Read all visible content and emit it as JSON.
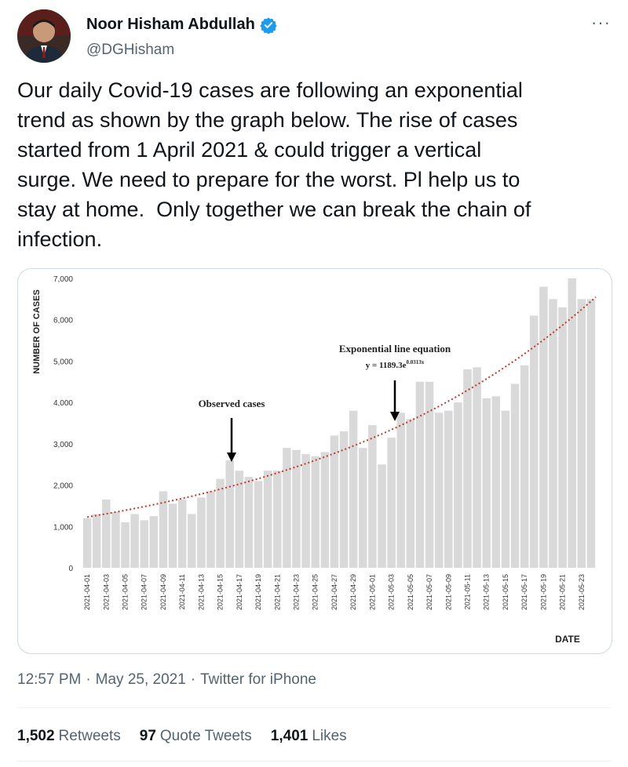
{
  "tweet": {
    "author_name": "Noor Hisham Abdullah",
    "handle": "@DGHisham",
    "more_icon": "more-horizontal-icon",
    "verified_icon": "verified-badge-icon",
    "text": "Our daily Covid-19 cases are following an exponential\ntrend as shown by the graph below. The rise of cases\nstarted from 1 April 2021 & could trigger a vertical\nsurge. We need to prepare for the worst. Pl help us to\nstay at home.  Only together we can break the chain of\ninfection.",
    "time": "12:57 PM",
    "date": "May 25, 2021",
    "source": "Twitter for iPhone",
    "separator": "·",
    "stats": {
      "retweets_count": "1,502",
      "retweets_label": "Retweets",
      "quotes_count": "97",
      "quotes_label": "Quote Tweets",
      "likes_count": "1,401",
      "likes_label": "Likes"
    },
    "colors": {
      "verified": "#1d9bf0",
      "bar": "#d9d9d9",
      "trend": "#c0392b"
    }
  },
  "chart_data": {
    "type": "bar",
    "ylabel": "NUMBER OF CASES",
    "xlabel": "DATE",
    "ylim": [
      0,
      7000
    ],
    "yticks": [
      "0",
      "1,000",
      "2,000",
      "3,000",
      "4,000",
      "5,000",
      "6,000",
      "7,000"
    ],
    "grid": false,
    "annotations": {
      "observed": "Observed cases",
      "equation_title": "Exponential line equation",
      "equation": "y = 1189.3e",
      "equation_exp": "0.0313x"
    },
    "trend": {
      "a": 1189.3,
      "b": 0.0313
    },
    "categories": [
      "2021-04-01",
      "2021-04-02",
      "2021-04-03",
      "2021-04-04",
      "2021-04-05",
      "2021-04-06",
      "2021-04-07",
      "2021-04-08",
      "2021-04-09",
      "2021-04-10",
      "2021-04-11",
      "2021-04-12",
      "2021-04-13",
      "2021-04-14",
      "2021-04-15",
      "2021-04-16",
      "2021-04-17",
      "2021-04-18",
      "2021-04-19",
      "2021-04-20",
      "2021-04-21",
      "2021-04-22",
      "2021-04-23",
      "2021-04-24",
      "2021-04-25",
      "2021-04-26",
      "2021-04-27",
      "2021-04-28",
      "2021-04-29",
      "2021-04-30",
      "2021-05-01",
      "2021-05-02",
      "2021-05-03",
      "2021-05-04",
      "2021-05-05",
      "2021-05-06",
      "2021-05-07",
      "2021-05-08",
      "2021-05-09",
      "2021-05-10",
      "2021-05-11",
      "2021-05-12",
      "2021-05-13",
      "2021-05-14",
      "2021-05-15",
      "2021-05-16",
      "2021-05-17",
      "2021-05-18",
      "2021-05-19",
      "2021-05-20",
      "2021-05-21",
      "2021-05-22",
      "2021-05-23",
      "2021-05-24"
    ],
    "values": [
      1200,
      1300,
      1650,
      1350,
      1100,
      1300,
      1150,
      1250,
      1850,
      1550,
      1650,
      1300,
      1700,
      1850,
      2150,
      2600,
      2350,
      2200,
      2100,
      2350,
      2350,
      2900,
      2850,
      2750,
      2700,
      2800,
      3200,
      3300,
      3800,
      2900,
      3450,
      2500,
      3150,
      3750,
      3600,
      4500,
      4500,
      3750,
      3800,
      4000,
      4800,
      4850,
      4100,
      4150,
      3800,
      4450,
      4900,
      6100,
      6800,
      6500,
      6300,
      7000,
      6500,
      6500
    ]
  }
}
